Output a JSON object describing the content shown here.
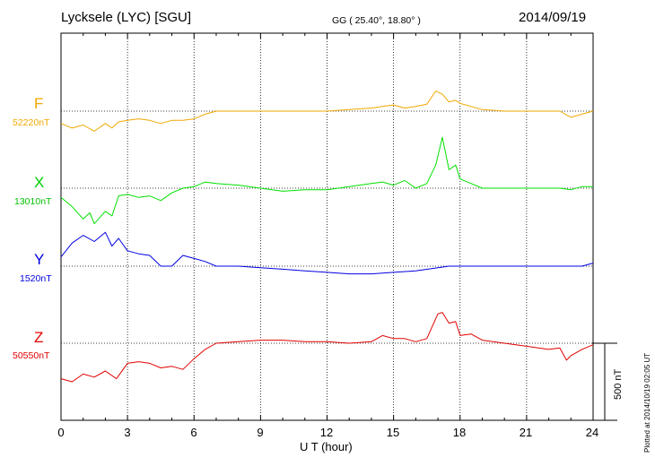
{
  "header": {
    "station": "Lycksele (LYC)  [SGU]",
    "coordinates": "GG ( 25.40°,  18.80° )",
    "date": "2014/09/19"
  },
  "traces": [
    {
      "name": "F",
      "baseline": "52220nT",
      "color": "#f0a800"
    },
    {
      "name": "X",
      "baseline": "13010nT",
      "color": "#00e000"
    },
    {
      "name": "Y",
      "baseline": "1520nT",
      "color": "#0000e0"
    },
    {
      "name": "Z",
      "baseline": "50550nT",
      "color": "#e00000"
    }
  ],
  "x_ticks": [
    "0",
    "3",
    "6",
    "9",
    "12",
    "15",
    "18",
    "21",
    "24"
  ],
  "xlabel": "U T (hour)",
  "scale_bar": "500 nT",
  "plotted_note": "Plotted at 2014/10/19 02:05 UT",
  "chart_data": {
    "type": "line",
    "xlabel": "U T (hour)",
    "xlim": [
      0,
      24
    ],
    "x_ticks": [
      0,
      3,
      6,
      9,
      12,
      15,
      18,
      21,
      24
    ],
    "scale_bar_nT": 500,
    "grid": true,
    "series": [
      {
        "name": "F",
        "unit": "nT",
        "baseline": 52220,
        "x": [
          0,
          0.5,
          1,
          1.5,
          2,
          2.3,
          2.6,
          3,
          3.5,
          4,
          4.5,
          5,
          5.5,
          6,
          6.5,
          7,
          8,
          9,
          10,
          11,
          12,
          13,
          14,
          14.5,
          15,
          15.5,
          16,
          16.5,
          16.9,
          17.2,
          17.5,
          17.8,
          18,
          18.5,
          19,
          20,
          21,
          22,
          22.5,
          23,
          23.5,
          24
        ],
        "y": [
          -80,
          -110,
          -90,
          -130,
          -80,
          -110,
          -70,
          -60,
          -50,
          -60,
          -80,
          -60,
          -60,
          -50,
          -20,
          0,
          0,
          0,
          0,
          0,
          0,
          10,
          20,
          30,
          40,
          20,
          30,
          45,
          130,
          110,
          60,
          70,
          50,
          30,
          10,
          0,
          0,
          0,
          0,
          -40,
          -20,
          0
        ]
      },
      {
        "name": "X",
        "unit": "nT",
        "baseline": 13010,
        "x": [
          0,
          0.5,
          1,
          1.3,
          1.5,
          2,
          2.3,
          2.6,
          3,
          3.5,
          4,
          4.5,
          5,
          5.5,
          6,
          6.5,
          7,
          8,
          9,
          10,
          11,
          12,
          13,
          14,
          14.5,
          15,
          15.5,
          16,
          16.5,
          16.9,
          17.2,
          17.5,
          17.8,
          18,
          18.5,
          19,
          20,
          21,
          22,
          22.5,
          23,
          23.5,
          24
        ],
        "y": [
          -60,
          -120,
          -200,
          -160,
          -230,
          -150,
          -180,
          -50,
          -40,
          -60,
          -50,
          -80,
          -30,
          0,
          10,
          40,
          30,
          20,
          0,
          -20,
          -10,
          -10,
          10,
          30,
          40,
          20,
          50,
          0,
          30,
          150,
          330,
          120,
          150,
          60,
          30,
          0,
          0,
          0,
          0,
          0,
          -10,
          10,
          10
        ]
      },
      {
        "name": "Y",
        "unit": "nT",
        "baseline": 1520,
        "x": [
          0,
          0.5,
          1,
          1.5,
          2,
          2.3,
          2.6,
          3,
          3.5,
          4,
          4.5,
          5,
          5.5,
          6,
          6.5,
          7,
          8,
          9,
          10,
          11,
          12,
          13,
          14,
          15,
          16,
          17,
          17.5,
          18,
          19,
          20,
          21,
          22,
          23,
          23.5,
          24
        ],
        "y": [
          60,
          150,
          200,
          160,
          220,
          130,
          180,
          100,
          80,
          70,
          0,
          0,
          70,
          50,
          30,
          0,
          0,
          -10,
          -20,
          -30,
          -40,
          -50,
          -50,
          -40,
          -30,
          -10,
          0,
          0,
          0,
          0,
          0,
          0,
          0,
          0,
          20
        ]
      },
      {
        "name": "Z",
        "unit": "nT",
        "baseline": 50550,
        "x": [
          0,
          0.5,
          1,
          1.5,
          2,
          2.5,
          3,
          3.5,
          4,
          4.5,
          5,
          5.5,
          6,
          6.5,
          7,
          8,
          9,
          10,
          11,
          12,
          13,
          14,
          14.5,
          15,
          15.5,
          16,
          16.5,
          17,
          17.2,
          17.5,
          17.8,
          18,
          18.5,
          19,
          20,
          21,
          22,
          22.5,
          22.8,
          23,
          23.5,
          24
        ],
        "y": [
          -230,
          -250,
          -200,
          -220,
          -180,
          -230,
          -130,
          -120,
          -130,
          -160,
          -150,
          -170,
          -100,
          -40,
          0,
          10,
          20,
          20,
          10,
          10,
          0,
          10,
          50,
          30,
          30,
          10,
          30,
          190,
          200,
          130,
          140,
          50,
          60,
          20,
          0,
          -20,
          -40,
          -30,
          -110,
          -80,
          -40,
          -10
        ]
      }
    ]
  }
}
